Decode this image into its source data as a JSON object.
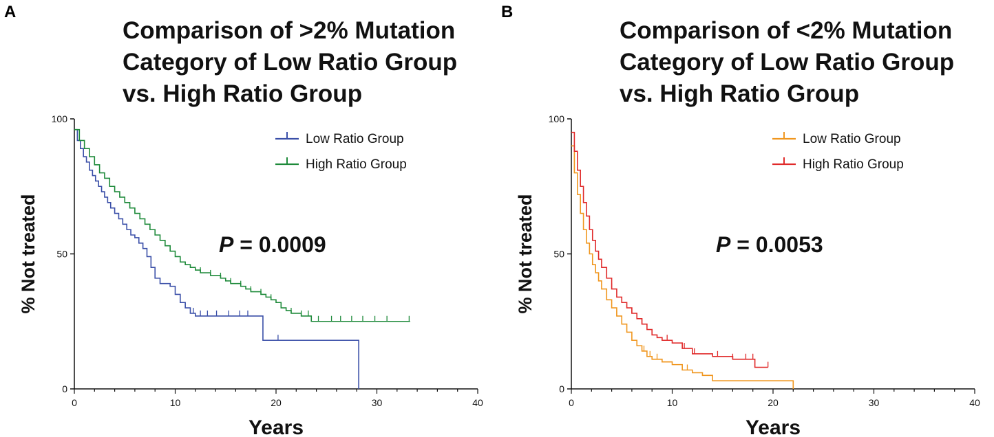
{
  "chart_data": [
    {
      "panel_label": "A",
      "type": "line",
      "subtype": "kaplan-meier",
      "title_lines": [
        "Comparison of >2% Mutation",
        "Category of Low Ratio Group",
        "vs. High Ratio Group"
      ],
      "xlabel": "Years",
      "ylabel": "% Not treated",
      "xlim": [
        0,
        40
      ],
      "ylim": [
        0,
        100
      ],
      "xticks": [
        0,
        10,
        20,
        30,
        40
      ],
      "yticks": [
        0,
        50,
        100
      ],
      "annotation": {
        "p_symbol": "P",
        "p_text": " = 0.0009"
      },
      "legend_position": "top-right",
      "series": [
        {
          "name": "Low Ratio Group",
          "color": "#3a4fa8",
          "x": [
            0,
            0.3,
            0.6,
            0.9,
            1.2,
            1.5,
            1.8,
            2.1,
            2.4,
            2.7,
            3,
            3.3,
            3.6,
            4,
            4.4,
            4.8,
            5.2,
            5.6,
            6,
            6.4,
            6.8,
            7.2,
            7.6,
            8,
            8.5,
            9,
            9.5,
            10,
            10.5,
            11,
            11.5,
            12,
            14,
            16,
            18.7,
            18.7,
            28.2,
            28.2
          ],
          "y": [
            96,
            92,
            89,
            86,
            84,
            81,
            79,
            77,
            75,
            73,
            71,
            69,
            67,
            65,
            63,
            61,
            59,
            57,
            56,
            54,
            52,
            49,
            45,
            41,
            39,
            39,
            38,
            35,
            32,
            30,
            28,
            27,
            27,
            27,
            27,
            18,
            18,
            0
          ],
          "censor_x": [
            11.8,
            12.5,
            13.2,
            14.1,
            15.3,
            16.4,
            17.2,
            20.2
          ]
        },
        {
          "name": "High Ratio Group",
          "color": "#1e8a3a",
          "x": [
            0,
            0.5,
            1,
            1.5,
            2,
            2.5,
            3,
            3.5,
            4,
            4.5,
            5,
            5.5,
            6,
            6.5,
            7,
            7.5,
            8,
            8.5,
            9,
            9.5,
            10,
            10.5,
            11,
            11.5,
            12,
            12.5,
            13,
            13.5,
            14,
            14.5,
            15,
            15.5,
            16,
            16.5,
            17,
            17.5,
            18,
            18.5,
            19,
            19.5,
            20,
            20.5,
            21,
            21.5,
            22,
            22.5,
            23,
            23.5,
            33.3
          ],
          "y": [
            96,
            92,
            89,
            86,
            83,
            80,
            78,
            75,
            73,
            71,
            69,
            67,
            65,
            63,
            61,
            59,
            57,
            55,
            53,
            51,
            49,
            47,
            46,
            45,
            44,
            43,
            43,
            42,
            42,
            41,
            40,
            39,
            39,
            38,
            37,
            36,
            36,
            35,
            34,
            33,
            32,
            30,
            29,
            28,
            28,
            27,
            27,
            25,
            25
          ],
          "censor_x": [
            12.5,
            13.5,
            14.5,
            15.5,
            16.5,
            17.5,
            18.5,
            19.5,
            20.5,
            21.5,
            22.5,
            23.2,
            24.2,
            25.5,
            26.4,
            27.5,
            28.6,
            29.8,
            31,
            33.2
          ]
        }
      ]
    },
    {
      "panel_label": "B",
      "type": "line",
      "subtype": "kaplan-meier",
      "title_lines": [
        "Comparison of <2% Mutation",
        "Category of Low Ratio Group",
        "vs. High Ratio Group"
      ],
      "xlabel": "Years",
      "ylabel": "% Not treated",
      "xlim": [
        0,
        40
      ],
      "ylim": [
        0,
        100
      ],
      "xticks": [
        0,
        10,
        20,
        30,
        40
      ],
      "yticks": [
        0,
        50,
        100
      ],
      "annotation": {
        "p_symbol": "P",
        "p_text": " = 0.0053"
      },
      "legend_position": "top-right",
      "series": [
        {
          "name": "Low Ratio Group",
          "color": "#f0961e",
          "x": [
            0,
            0.3,
            0.6,
            0.9,
            1.2,
            1.5,
            1.8,
            2.1,
            2.4,
            2.7,
            3,
            3.5,
            4,
            4.5,
            5,
            5.5,
            6,
            6.5,
            7,
            7.5,
            8,
            9,
            10,
            11,
            12,
            13,
            14,
            16,
            18,
            20,
            22,
            22
          ],
          "y": [
            90,
            80,
            72,
            65,
            59,
            54,
            50,
            46,
            43,
            40,
            37,
            33,
            30,
            27,
            24,
            21,
            18,
            16,
            14,
            12,
            11,
            10,
            9,
            7,
            6,
            5,
            3,
            3,
            3,
            3,
            3,
            0
          ],
          "censor_x": [
            3.5,
            4.5,
            7.2,
            7.8,
            8.5,
            11.5
          ]
        },
        {
          "name": "High Ratio Group",
          "color": "#e02a2a",
          "x": [
            0,
            0.3,
            0.6,
            0.9,
            1.2,
            1.5,
            1.8,
            2.1,
            2.4,
            2.7,
            3,
            3.5,
            4,
            4.5,
            5,
            5.5,
            6,
            6.5,
            7,
            7.5,
            8,
            8.5,
            9,
            10,
            11,
            12,
            13,
            14,
            15,
            16,
            17,
            18,
            18.2,
            19.5
          ],
          "y": [
            95,
            88,
            81,
            75,
            69,
            64,
            59,
            55,
            51,
            48,
            45,
            41,
            37,
            34,
            32,
            30,
            28,
            26,
            24,
            22,
            20,
            19,
            18,
            17,
            15,
            13,
            13,
            12,
            12,
            11,
            11,
            11,
            8,
            8
          ],
          "censor_x": [
            4,
            5,
            6,
            7,
            8,
            9.5,
            11.2,
            12.2,
            14.5,
            16,
            17.3,
            18,
            19.5
          ]
        }
      ]
    }
  ]
}
